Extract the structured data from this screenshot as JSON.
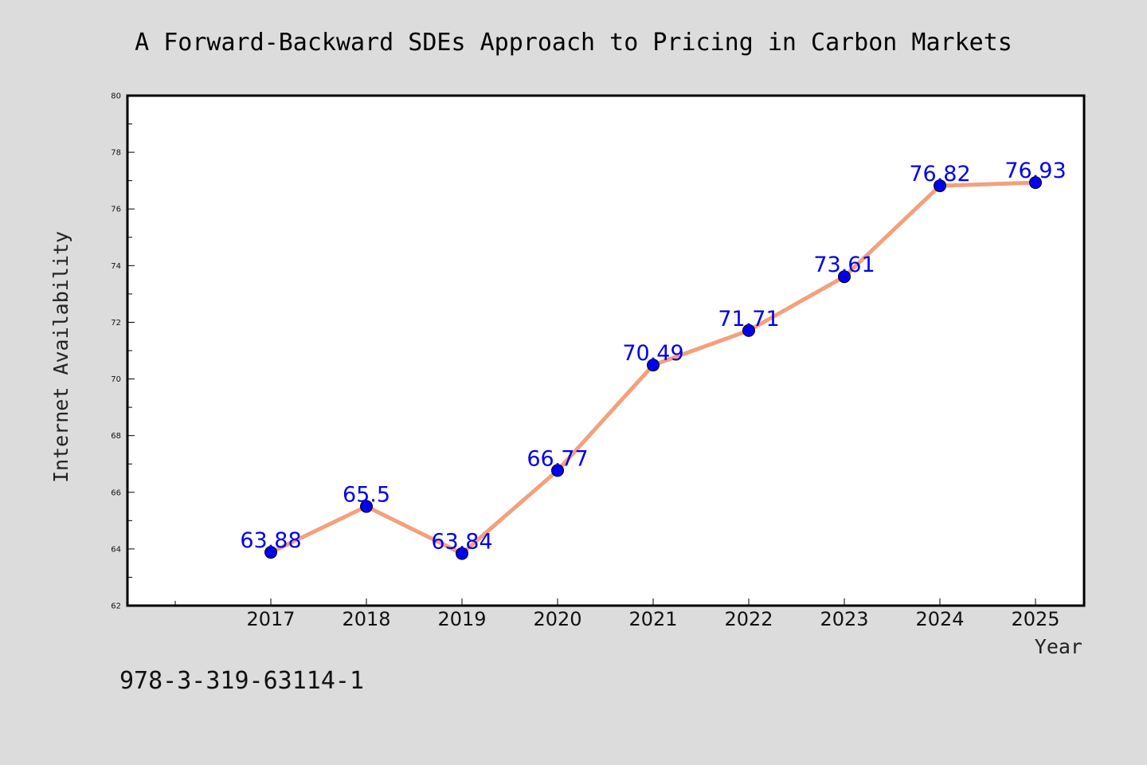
{
  "chart_data": {
    "type": "line",
    "title": "A Forward-Backward SDEs Approach to Pricing in Carbon Markets",
    "xlabel": "Year",
    "ylabel": "Internet Availability",
    "x": [
      "2017",
      "2018",
      "2019",
      "2020",
      "2021",
      "2022",
      "2023",
      "2024",
      "2025"
    ],
    "series": [
      {
        "values": [
          63.88,
          65.5,
          63.84,
          66.77,
          70.49,
          71.71,
          73.61,
          76.82,
          76.93
        ],
        "data_labels": [
          "63.88",
          "65.5",
          "63.84",
          "66.77",
          "70.49",
          "71.71",
          "73.61",
          "76.82",
          "76.93"
        ],
        "line_color": "#f4a07c",
        "marker_color": "#0000ee"
      }
    ],
    "ylim": [
      62,
      80
    ],
    "yticks": [
      "62",
      "64",
      "66",
      "68",
      "70",
      "72",
      "74",
      "76",
      "78",
      "80"
    ],
    "grid": false,
    "legend": "none"
  },
  "footer": {
    "isbn": "978-3-319-63114-1"
  },
  "colors": {
    "background": "#dcdcdc",
    "plot_background": "#ffffff",
    "label_color": "#0000ee"
  }
}
